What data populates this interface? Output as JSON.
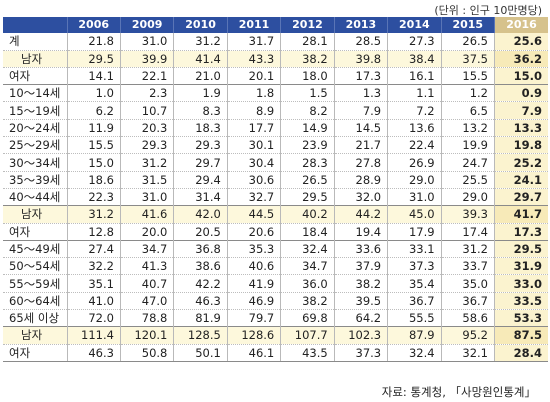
{
  "unit_note": "(단위 : 인구 10만명당)",
  "columns": [
    "2006",
    "2009",
    "2010",
    "2011",
    "2012",
    "2013",
    "2014",
    "2015",
    "2016"
  ],
  "rows": [
    {
      "label": "계",
      "type": "main",
      "values": [
        "21.8",
        "31.0",
        "31.2",
        "31.7",
        "28.1",
        "28.5",
        "27.3",
        "26.5",
        "25.6"
      ]
    },
    {
      "label": "남자",
      "type": "sub",
      "values": [
        "29.5",
        "39.9",
        "41.4",
        "43.3",
        "38.2",
        "39.8",
        "38.4",
        "37.5",
        "36.2"
      ]
    },
    {
      "label": "여자",
      "type": "plain",
      "values": [
        "14.1",
        "22.1",
        "21.0",
        "20.1",
        "18.0",
        "17.3",
        "16.1",
        "15.5",
        "15.0"
      ]
    },
    {
      "label": "10～14세",
      "type": "grp",
      "values": [
        "1.0",
        "2.3",
        "1.9",
        "1.8",
        "1.5",
        "1.3",
        "1.1",
        "1.2",
        "0.9"
      ]
    },
    {
      "label": "15～19세",
      "type": "plain",
      "values": [
        "6.2",
        "10.7",
        "8.3",
        "8.9",
        "8.2",
        "7.9",
        "7.2",
        "6.5",
        "7.9"
      ]
    },
    {
      "label": "20～24세",
      "type": "plain",
      "values": [
        "11.9",
        "20.3",
        "18.3",
        "17.7",
        "14.9",
        "14.5",
        "13.6",
        "13.2",
        "13.3"
      ]
    },
    {
      "label": "25～29세",
      "type": "plain",
      "values": [
        "15.5",
        "29.3",
        "29.3",
        "30.1",
        "23.9",
        "21.7",
        "22.4",
        "19.9",
        "19.8"
      ]
    },
    {
      "label": "30～34세",
      "type": "plain",
      "values": [
        "15.0",
        "31.2",
        "29.7",
        "30.4",
        "28.3",
        "27.8",
        "26.9",
        "24.7",
        "25.2"
      ]
    },
    {
      "label": "35～39세",
      "type": "plain",
      "values": [
        "18.6",
        "31.5",
        "29.4",
        "30.6",
        "26.5",
        "28.9",
        "29.0",
        "25.5",
        "24.1"
      ]
    },
    {
      "label": "40～44세",
      "type": "plain",
      "values": [
        "22.3",
        "31.0",
        "31.4",
        "32.7",
        "29.5",
        "32.0",
        "31.0",
        "29.0",
        "29.7"
      ]
    },
    {
      "label": "남자",
      "type": "sub grp",
      "values": [
        "31.2",
        "41.6",
        "42.0",
        "44.5",
        "40.2",
        "44.2",
        "45.0",
        "39.3",
        "41.7"
      ]
    },
    {
      "label": "여자",
      "type": "plain",
      "values": [
        "12.8",
        "20.0",
        "20.5",
        "20.6",
        "18.4",
        "19.4",
        "17.9",
        "17.4",
        "17.3"
      ]
    },
    {
      "label": "45～49세",
      "type": "grp",
      "values": [
        "27.4",
        "34.7",
        "36.8",
        "35.3",
        "32.4",
        "33.6",
        "33.1",
        "31.2",
        "29.5"
      ]
    },
    {
      "label": "50～54세",
      "type": "plain",
      "values": [
        "32.2",
        "41.3",
        "38.6",
        "40.6",
        "34.7",
        "37.9",
        "37.3",
        "33.7",
        "31.9"
      ]
    },
    {
      "label": "55～59세",
      "type": "plain",
      "values": [
        "35.1",
        "40.7",
        "42.2",
        "41.9",
        "36.0",
        "38.2",
        "35.4",
        "35.0",
        "33.0"
      ]
    },
    {
      "label": "60～64세",
      "type": "plain",
      "values": [
        "41.0",
        "47.0",
        "46.3",
        "46.9",
        "38.2",
        "39.5",
        "36.7",
        "36.7",
        "33.5"
      ]
    },
    {
      "label": "65세 이상",
      "type": "plain",
      "values": [
        "72.0",
        "78.8",
        "81.9",
        "79.7",
        "69.8",
        "64.2",
        "55.5",
        "58.6",
        "53.3"
      ]
    },
    {
      "label": "남자",
      "type": "sub grp",
      "values": [
        "111.4",
        "120.1",
        "128.5",
        "128.6",
        "107.7",
        "102.3",
        "87.9",
        "95.2",
        "87.5"
      ]
    },
    {
      "label": "여자",
      "type": "plain last",
      "values": [
        "46.3",
        "50.8",
        "50.1",
        "46.1",
        "43.5",
        "37.3",
        "32.4",
        "32.1",
        "28.4"
      ]
    }
  ],
  "source": "자료: 통계청, 「사망원인통계」",
  "colors": {
    "header": "#2d4fa0",
    "header_highlight": "#d6c28c",
    "highlight_column": "#fbf3cf",
    "subgroup_row": "#fdf8dc"
  }
}
